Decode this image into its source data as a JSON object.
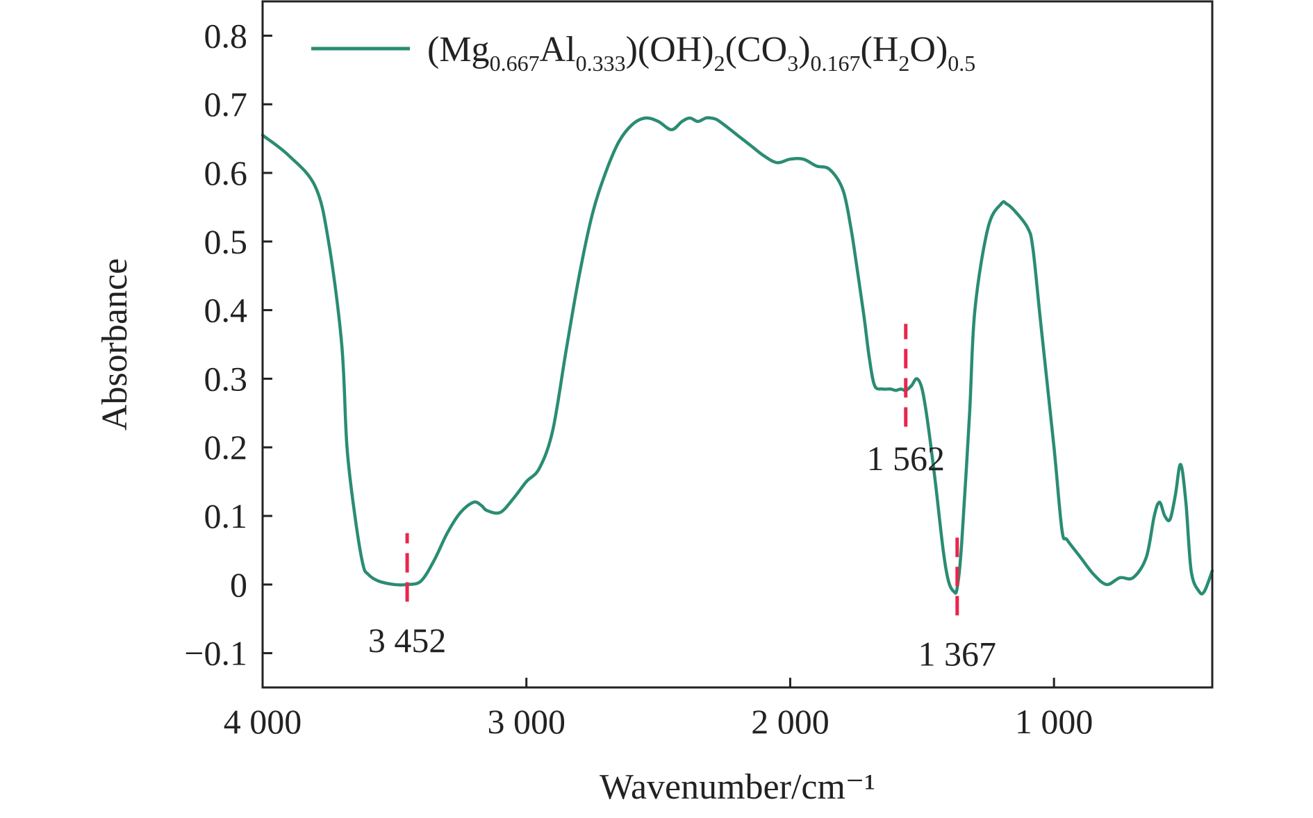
{
  "chart_data": {
    "type": "line",
    "xlabel": "Wavenumber/cm⁻¹",
    "ylabel": "Absorbance",
    "xlim": [
      4000,
      400
    ],
    "ylim": [
      -0.15,
      0.85
    ],
    "x_reversed": true,
    "x_ticks": [
      {
        "value": 4000,
        "label": "4 000"
      },
      {
        "value": 3000,
        "label": "3 000"
      },
      {
        "value": 2000,
        "label": "2 000"
      },
      {
        "value": 1000,
        "label": "1 000"
      }
    ],
    "y_ticks": [
      {
        "value": 0.8,
        "label": "0.8"
      },
      {
        "value": 0.7,
        "label": "0.7"
      },
      {
        "value": 0.6,
        "label": "0.6"
      },
      {
        "value": 0.5,
        "label": "0.5"
      },
      {
        "value": 0.4,
        "label": "0.4"
      },
      {
        "value": 0.3,
        "label": "0.3"
      },
      {
        "value": 0.2,
        "label": "0.2"
      },
      {
        "value": 0.1,
        "label": "0.1"
      },
      {
        "value": 0,
        "label": "0"
      },
      {
        "value": -0.1,
        "label": "−0.1"
      }
    ],
    "grid": false,
    "legend_position": "top",
    "series": [
      {
        "name_parts": [
          {
            "t": "(Mg",
            "s": "n"
          },
          {
            "t": "0.667",
            "s": "sub"
          },
          {
            "t": "Al",
            "s": "n"
          },
          {
            "t": "0.333",
            "s": "sub"
          },
          {
            "t": ")(OH)",
            "s": "n"
          },
          {
            "t": "2",
            "s": "sub"
          },
          {
            "t": "(CO",
            "s": "n"
          },
          {
            "t": "3",
            "s": "sub"
          },
          {
            "t": ")",
            "s": "n"
          },
          {
            "t": "0.167",
            "s": "sub"
          },
          {
            "t": "(H",
            "s": "n"
          },
          {
            "t": "2",
            "s": "sub"
          },
          {
            "t": "O)",
            "s": "n"
          },
          {
            "t": "0.5",
            "s": "sub"
          }
        ],
        "color": "#2a8c73",
        "x": [
          4000,
          3900,
          3800,
          3750,
          3700,
          3680,
          3650,
          3620,
          3600,
          3560,
          3500,
          3452,
          3400,
          3350,
          3300,
          3250,
          3200,
          3170,
          3150,
          3100,
          3050,
          3000,
          2950,
          2900,
          2850,
          2800,
          2750,
          2700,
          2650,
          2600,
          2550,
          2500,
          2450,
          2410,
          2380,
          2350,
          2320,
          2300,
          2280,
          2250,
          2200,
          2150,
          2100,
          2050,
          2000,
          1950,
          1900,
          1850,
          1800,
          1770,
          1750,
          1720,
          1700,
          1680,
          1650,
          1620,
          1600,
          1580,
          1562,
          1540,
          1520,
          1500,
          1480,
          1450,
          1420,
          1400,
          1380,
          1367,
          1350,
          1320,
          1300,
          1250,
          1200,
          1180,
          1150,
          1100,
          1080,
          1050,
          1000,
          970,
          950,
          900,
          850,
          800,
          750,
          700,
          650,
          620,
          600,
          580,
          560,
          540,
          520,
          500,
          480,
          450,
          430,
          400
        ],
        "y": [
          0.655,
          0.625,
          0.58,
          0.5,
          0.35,
          0.2,
          0.1,
          0.03,
          0.015,
          0.005,
          0.0,
          0.0,
          0.005,
          0.035,
          0.075,
          0.105,
          0.12,
          0.115,
          0.108,
          0.105,
          0.125,
          0.15,
          0.17,
          0.225,
          0.34,
          0.45,
          0.54,
          0.6,
          0.645,
          0.67,
          0.68,
          0.675,
          0.663,
          0.675,
          0.68,
          0.675,
          0.68,
          0.68,
          0.678,
          0.67,
          0.655,
          0.64,
          0.625,
          0.615,
          0.62,
          0.62,
          0.61,
          0.605,
          0.575,
          0.52,
          0.47,
          0.39,
          0.33,
          0.29,
          0.285,
          0.285,
          0.283,
          0.285,
          0.283,
          0.29,
          0.3,
          0.285,
          0.24,
          0.15,
          0.05,
          0.005,
          -0.01,
          -0.005,
          0.06,
          0.25,
          0.4,
          0.52,
          0.555,
          0.555,
          0.545,
          0.52,
          0.49,
          0.38,
          0.2,
          0.08,
          0.065,
          0.04,
          0.015,
          0.0,
          0.01,
          0.01,
          0.04,
          0.1,
          0.12,
          0.1,
          0.095,
          0.13,
          0.175,
          0.12,
          0.02,
          -0.01,
          -0.01,
          0.02
        ]
      }
    ],
    "annotations": [
      {
        "label": "3 452",
        "x": 3452,
        "y_from": -0.025,
        "y_to": 0.075,
        "label_y": -0.08
      },
      {
        "label": "1 562",
        "x": 1562,
        "y_from": 0.23,
        "y_to": 0.38,
        "label_y": 0.185
      },
      {
        "label": "1 367",
        "x": 1367,
        "y_from": -0.045,
        "y_to": 0.08,
        "label_y": -0.1
      }
    ],
    "annotation_color": "#e8264c"
  }
}
